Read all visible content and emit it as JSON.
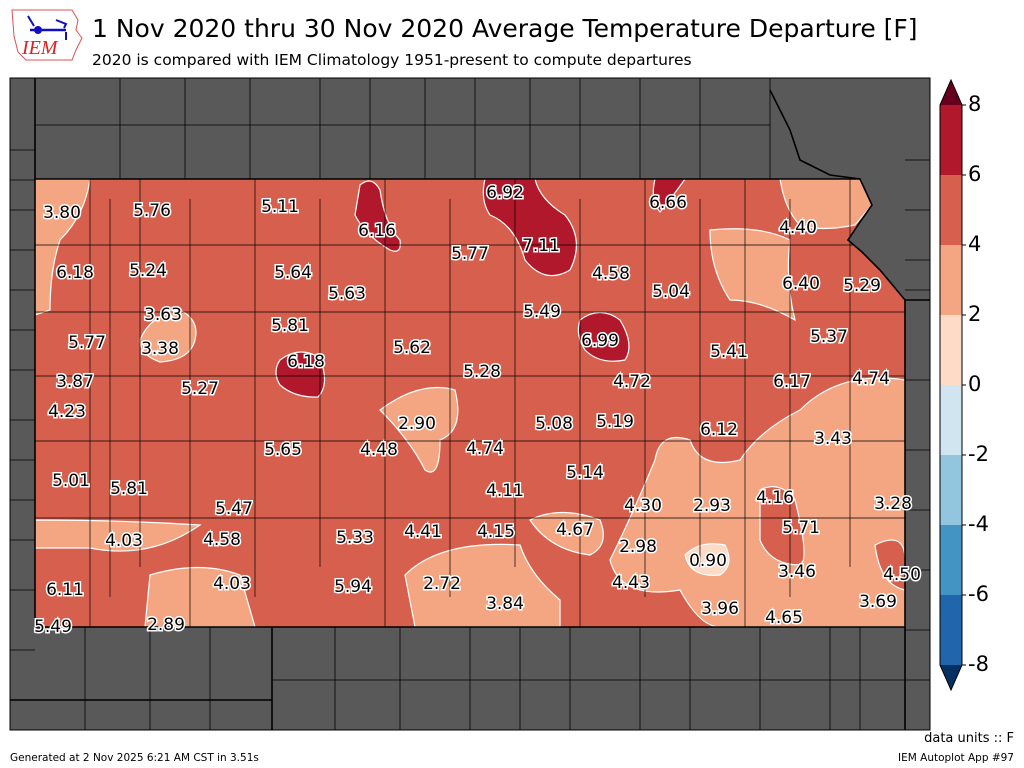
{
  "header": {
    "title": "1 Nov 2020 thru 30 Nov 2020 Average Temperature Departure [F]",
    "subtitle": "2020 is compared with IEM Climatology 1951-present to compute departures",
    "logo_text": "IEM"
  },
  "footer": {
    "generated": "Generated at 2 Nov 2025 6:21 AM CST in 3.51s",
    "app": "IEM Autoplot App #97",
    "units": "data units :: F"
  },
  "colorbar": {
    "ticks": [
      "8",
      "6",
      "4",
      "2",
      "0",
      "-2",
      "-4",
      "-6",
      "-8"
    ],
    "colors": [
      "#67001f",
      "#b2182b",
      "#d6604d",
      "#f4a582",
      "#fddbc7",
      "#d1e5f0",
      "#92c5de",
      "#4393c3",
      "#2166ac",
      "#053061"
    ]
  },
  "map": {
    "outside_color": "#595959",
    "station_values": [
      "3.80",
      "5.76",
      "5.11",
      "6.16",
      "6.92",
      "6.66",
      "4.40",
      "6.18",
      "5.24",
      "5.64",
      "5.63",
      "5.77",
      "7.11",
      "4.58",
      "5.04",
      "6.40",
      "5.29",
      "3.63",
      "5.81",
      "5.77",
      "3.38",
      "5.62",
      "5.49",
      "6.99",
      "5.41",
      "5.37",
      "6.18",
      "3.87",
      "5.27",
      "5.28",
      "4.72",
      "6.17",
      "4.74",
      "4.23",
      "2.90",
      "5.08",
      "5.19",
      "6.12",
      "3.43",
      "5.65",
      "4.48",
      "4.74",
      "5.14",
      "5.01",
      "5.81",
      "4.11",
      "5.47",
      "4.30",
      "2.93",
      "4.16",
      "3.28",
      "4.03",
      "4.58",
      "5.33",
      "4.41",
      "4.15",
      "4.67",
      "2.98",
      "5.71",
      "0.90",
      "3.46",
      "4.50",
      "6.11",
      "4.03",
      "5.94",
      "2.72",
      "3.84",
      "4.43",
      "3.69",
      "5.49",
      "2.89",
      "3.96",
      "4.65"
    ]
  }
}
